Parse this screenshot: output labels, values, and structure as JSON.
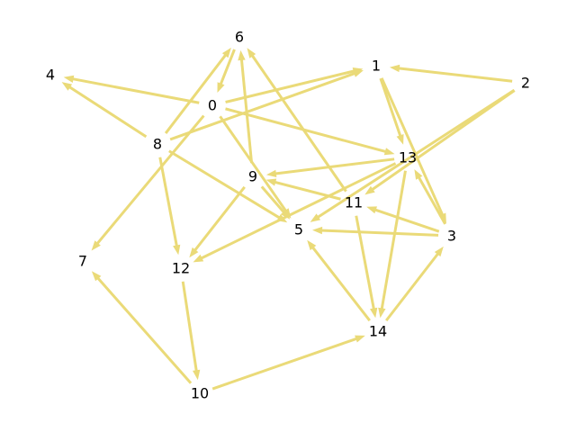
{
  "graph": {
    "edge_color": "#eada78",
    "nodes": [
      {
        "id": "0",
        "label": "0"
      },
      {
        "id": "1",
        "label": "1"
      },
      {
        "id": "2",
        "label": "2"
      },
      {
        "id": "3",
        "label": "3"
      },
      {
        "id": "4",
        "label": "4"
      },
      {
        "id": "5",
        "label": "5"
      },
      {
        "id": "6",
        "label": "6"
      },
      {
        "id": "7",
        "label": "7"
      },
      {
        "id": "8",
        "label": "8"
      },
      {
        "id": "9",
        "label": "9"
      },
      {
        "id": "10",
        "label": "10"
      },
      {
        "id": "11",
        "label": "11"
      },
      {
        "id": "12",
        "label": "12"
      },
      {
        "id": "13",
        "label": "13"
      },
      {
        "id": "14",
        "label": "14"
      }
    ],
    "edges": [
      {
        "from": "0",
        "to": "4"
      },
      {
        "from": "0",
        "to": "1"
      },
      {
        "from": "0",
        "to": "13"
      },
      {
        "from": "0",
        "to": "5"
      },
      {
        "from": "0",
        "to": "7"
      },
      {
        "from": "6",
        "to": "0"
      },
      {
        "from": "8",
        "to": "4"
      },
      {
        "from": "8",
        "to": "6"
      },
      {
        "from": "8",
        "to": "1"
      },
      {
        "from": "8",
        "to": "12"
      },
      {
        "from": "8",
        "to": "5"
      },
      {
        "from": "2",
        "to": "1"
      },
      {
        "from": "1",
        "to": "13"
      },
      {
        "from": "1",
        "to": "3"
      },
      {
        "from": "2",
        "to": "5"
      },
      {
        "from": "2",
        "to": "11"
      },
      {
        "from": "13",
        "to": "9"
      },
      {
        "from": "13",
        "to": "12"
      },
      {
        "from": "13",
        "to": "14"
      },
      {
        "from": "3",
        "to": "13"
      },
      {
        "from": "3",
        "to": "11"
      },
      {
        "from": "3",
        "to": "5"
      },
      {
        "from": "11",
        "to": "9"
      },
      {
        "from": "11",
        "to": "6"
      },
      {
        "from": "11",
        "to": "14"
      },
      {
        "from": "9",
        "to": "6"
      },
      {
        "from": "9",
        "to": "5"
      },
      {
        "from": "9",
        "to": "12"
      },
      {
        "from": "14",
        "to": "5"
      },
      {
        "from": "14",
        "to": "3"
      },
      {
        "from": "12",
        "to": "10"
      },
      {
        "from": "10",
        "to": "7"
      },
      {
        "from": "10",
        "to": "14"
      }
    ]
  }
}
